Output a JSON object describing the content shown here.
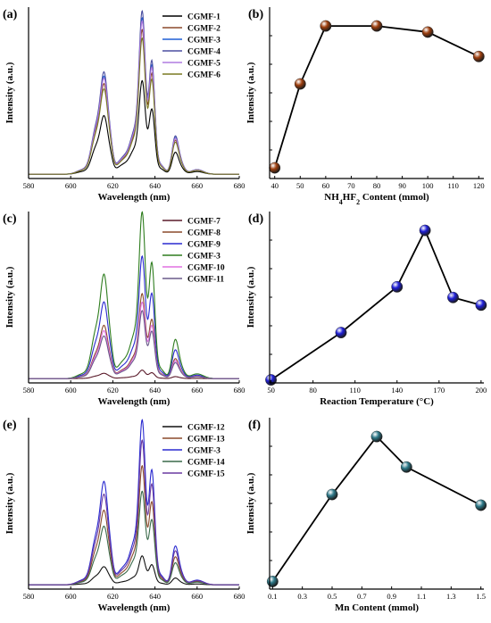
{
  "chart_data": [
    {
      "id": "a",
      "type": "line",
      "panel_label": "(a)",
      "xlabel": "Wavelength (nm)",
      "ylabel": "Intensity (a.u.)",
      "xlim": [
        580,
        680
      ],
      "xticks": [
        580,
        600,
        620,
        640,
        660,
        680
      ],
      "series": [
        {
          "name": "CGMF-1",
          "color": "#000000",
          "scale": 0.55
        },
        {
          "name": "CGMF-2",
          "color": "#8b4a2b",
          "scale": 0.85
        },
        {
          "name": "CGMF-3",
          "color": "#1f5fd6",
          "scale": 0.92
        },
        {
          "name": "CGMF-4",
          "color": "#4b4fa0",
          "scale": 0.96
        },
        {
          "name": "CGMF-5",
          "color": "#b07be0",
          "scale": 0.9
        },
        {
          "name": "CGMF-6",
          "color": "#7a7a22",
          "scale": 0.8
        }
      ]
    },
    {
      "id": "b",
      "type": "scatter",
      "panel_label": "(b)",
      "xlabel_main": "NH",
      "xlabel_sub1": "4",
      "xlabel_mid": "HF",
      "xlabel_sub2": "2",
      "xlabel_tail": " Content (mmol)",
      "ylabel": "Intensity (a.u.)",
      "xlim": [
        38,
        122
      ],
      "ylim": [
        0,
        1.1
      ],
      "xticks": [
        40,
        50,
        60,
        70,
        80,
        90,
        100,
        110,
        120
      ],
      "x": [
        40,
        50,
        60,
        80,
        100,
        120
      ],
      "y": [
        0.07,
        0.62,
        1.0,
        1.0,
        0.96,
        0.8
      ],
      "marker_color": "#a0400f"
    },
    {
      "id": "c",
      "type": "line",
      "panel_label": "(c)",
      "xlabel": "Wavelength (nm)",
      "ylabel": "Intensity (a.u.)",
      "xlim": [
        580,
        680
      ],
      "xticks": [
        580,
        600,
        620,
        640,
        660,
        680
      ],
      "series": [
        {
          "name": "CGMF-7",
          "color": "#5a1a2a",
          "scale": 0.05
        },
        {
          "name": "CGMF-8",
          "color": "#8b4a2b",
          "scale": 0.5
        },
        {
          "name": "CGMF-9",
          "color": "#2a2ad0",
          "scale": 0.72
        },
        {
          "name": "CGMF-3",
          "color": "#2e7d1e",
          "scale": 0.98
        },
        {
          "name": "CGMF-10",
          "color": "#e070e0",
          "scale": 0.45
        },
        {
          "name": "CGMF-11",
          "color": "#6a5a8a",
          "scale": 0.4
        }
      ]
    },
    {
      "id": "d",
      "type": "scatter",
      "panel_label": "(d)",
      "xlabel": "Reaction Temperature (°C)",
      "ylabel": "Intensity (a.u.)",
      "xlim": [
        49,
        202
      ],
      "ylim": [
        0,
        1.1
      ],
      "xticks": [
        50,
        80,
        110,
        140,
        170,
        200
      ],
      "x": [
        50,
        100,
        140,
        160,
        180,
        200
      ],
      "y": [
        0.02,
        0.33,
        0.63,
        1.0,
        0.56,
        0.51
      ],
      "marker_color": "#1f1fd8"
    },
    {
      "id": "e",
      "type": "line",
      "panel_label": "(e)",
      "xlabel": "Wavelength (nm)",
      "ylabel": "Intensity (a.u.)",
      "xlim": [
        580,
        680
      ],
      "xticks": [
        580,
        600,
        620,
        640,
        660,
        680
      ],
      "series": [
        {
          "name": "CGMF-12",
          "color": "#111111",
          "scale": 0.17
        },
        {
          "name": "CGMF-13",
          "color": "#8b4a2b",
          "scale": 0.7
        },
        {
          "name": "CGMF-3",
          "color": "#2a2ad0",
          "scale": 0.97
        },
        {
          "name": "CGMF-14",
          "color": "#3a6a4a",
          "scale": 0.55
        },
        {
          "name": "CGMF-15",
          "color": "#6a3aa0",
          "scale": 0.85
        }
      ]
    },
    {
      "id": "f",
      "type": "scatter",
      "panel_label": "(f)",
      "xlabel": "Mn Content (mmol)",
      "ylabel": "Intensity (a.u.)",
      "xlim": [
        0.08,
        1.52
      ],
      "ylim": [
        0,
        1.1
      ],
      "xticks": [
        0.1,
        0.3,
        0.5,
        0.7,
        0.9,
        1.1,
        1.3,
        1.5
      ],
      "xtick_labels": [
        "0.1",
        "0.3",
        "0.5",
        "0.7",
        "0.9",
        "1.1",
        "1.3",
        "1.5"
      ],
      "x": [
        0.1,
        0.5,
        0.8,
        1.0,
        1.5
      ],
      "y": [
        0.05,
        0.62,
        1.0,
        0.8,
        0.55
      ],
      "marker_color": "#2e7a8a"
    }
  ]
}
